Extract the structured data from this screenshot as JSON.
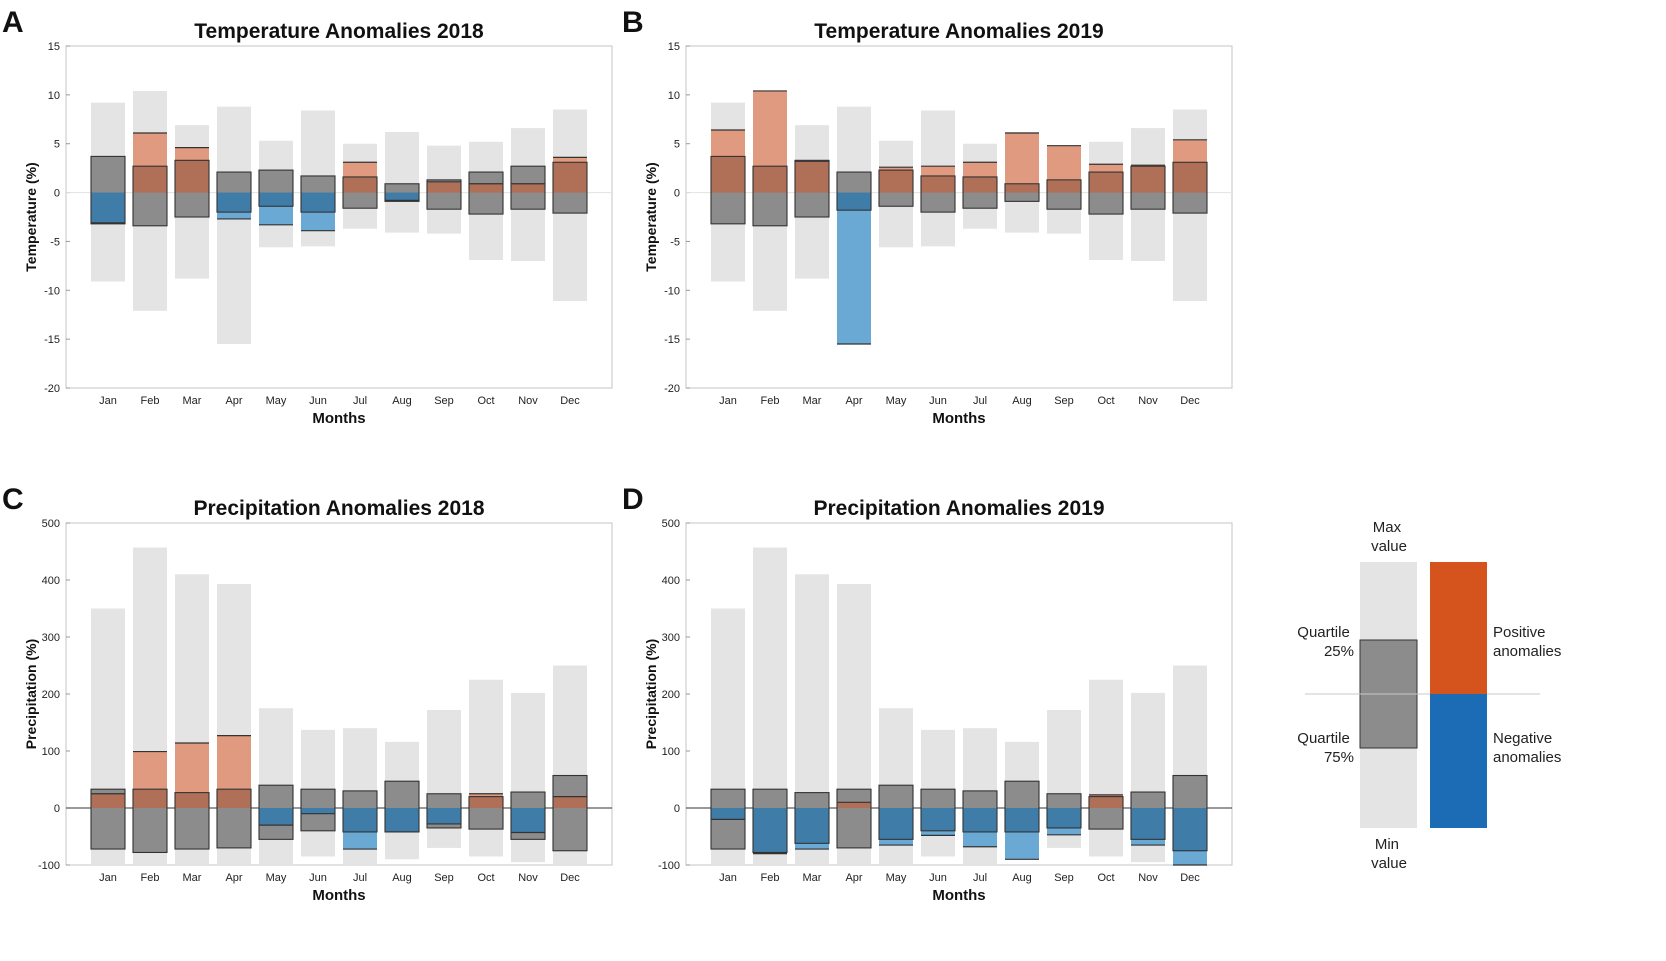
{
  "colors": {
    "range": "#e3e4e3",
    "quartile": "#8c8c8c",
    "positive_light": "#df9a80",
    "positive_dark": "#b07058",
    "negative_light": "#6aa9d4",
    "negative_dark": "#3f7ca8",
    "legend_positive": "#d5541e",
    "legend_negative": "#1c6cb5"
  },
  "legend": {
    "max_value": [
      "Max",
      "value"
    ],
    "min_value": [
      "Min",
      "value"
    ],
    "quartile_25": [
      "Quartile",
      "25%"
    ],
    "quartile_75": [
      "Quartile",
      "75%"
    ],
    "positive": [
      "Positive",
      "anomalies"
    ],
    "negative": [
      "Negative",
      "anomalies"
    ]
  },
  "chart_data": [
    {
      "panel": "A",
      "type": "bar",
      "title": "Temperature Anomalies 2018",
      "xlabel": "Months",
      "ylabel": "Temperature (%)",
      "ylim": [
        -20,
        15
      ],
      "yticks": [
        15,
        10,
        5,
        0,
        -5,
        -10,
        -15,
        -20
      ],
      "zero_line": "light",
      "categories": [
        "Jan",
        "Feb",
        "Mar",
        "Apr",
        "May",
        "Jun",
        "Jul",
        "Aug",
        "Sep",
        "Oct",
        "Nov",
        "Dec"
      ],
      "max": [
        9.2,
        10.4,
        6.9,
        8.8,
        5.3,
        8.4,
        5.0,
        6.2,
        4.8,
        5.2,
        6.6,
        8.5
      ],
      "min": [
        -9.1,
        -12.1,
        -8.8,
        -15.5,
        -5.6,
        -5.5,
        -3.7,
        -4.1,
        -4.2,
        -6.9,
        -7.0,
        -11.1
      ],
      "q25": [
        3.7,
        2.7,
        3.3,
        2.1,
        2.3,
        1.7,
        1.6,
        0.9,
        1.3,
        2.1,
        2.7,
        3.1
      ],
      "q75": [
        -3.2,
        -3.4,
        -2.5,
        -2.0,
        -1.4,
        -2.0,
        -1.6,
        -0.9,
        -1.7,
        -2.2,
        -1.7,
        -2.1
      ],
      "anomaly": [
        -3.1,
        6.1,
        4.6,
        -2.7,
        -3.3,
        -3.9,
        3.1,
        -0.8,
        1.1,
        0.9,
        0.9,
        3.6
      ]
    },
    {
      "panel": "B",
      "type": "bar",
      "title": "Temperature Anomalies 2019",
      "xlabel": "Months",
      "ylabel": "Temperature (%)",
      "ylim": [
        -20,
        15
      ],
      "yticks": [
        15,
        10,
        5,
        0,
        -5,
        -10,
        -15,
        -20
      ],
      "zero_line": "light",
      "categories": [
        "Jan",
        "Feb",
        "Mar",
        "Apr",
        "May",
        "Jun",
        "Jul",
        "Aug",
        "Sep",
        "Oct",
        "Nov",
        "Dec"
      ],
      "max": [
        9.2,
        10.4,
        6.9,
        8.8,
        5.3,
        8.4,
        5.0,
        6.2,
        4.8,
        5.2,
        6.6,
        8.5
      ],
      "min": [
        -9.1,
        -12.1,
        -8.8,
        -15.5,
        -5.6,
        -5.5,
        -3.7,
        -4.1,
        -4.2,
        -6.9,
        -7.0,
        -11.1
      ],
      "q25": [
        3.7,
        2.7,
        3.3,
        2.1,
        2.3,
        1.7,
        1.6,
        0.9,
        1.3,
        2.1,
        2.7,
        3.1
      ],
      "q75": [
        -3.2,
        -3.4,
        -2.5,
        -1.8,
        -1.4,
        -2.0,
        -1.6,
        -0.9,
        -1.7,
        -2.2,
        -1.7,
        -2.1
      ],
      "anomaly": [
        6.4,
        10.4,
        3.2,
        -15.5,
        2.6,
        2.7,
        3.1,
        6.1,
        4.8,
        2.9,
        2.8,
        5.4
      ]
    },
    {
      "panel": "C",
      "type": "bar",
      "title": "Precipitation Anomalies 2018",
      "xlabel": "Months",
      "ylabel": "Precipitation (%)",
      "ylim": [
        -100,
        500
      ],
      "yticks": [
        500,
        400,
        300,
        200,
        100,
        0,
        -100
      ],
      "zero_line": "dark",
      "categories": [
        "Jan",
        "Feb",
        "Mar",
        "Apr",
        "May",
        "Jun",
        "Jul",
        "Aug",
        "Sep",
        "Oct",
        "Nov",
        "Dec"
      ],
      "max": [
        350,
        457,
        410,
        393,
        175,
        137,
        140,
        116,
        172,
        225,
        202,
        250
      ],
      "min": [
        -100,
        -100,
        -100,
        -100,
        -100,
        -85,
        -100,
        -90,
        -70,
        -85,
        -95,
        -100
      ],
      "q25": [
        33,
        33,
        27,
        33,
        40,
        33,
        30,
        47,
        25,
        20,
        28,
        57
      ],
      "q75": [
        -72,
        -78,
        -72,
        -70,
        -55,
        -40,
        -42,
        -42,
        -35,
        -37,
        -55,
        -75
      ],
      "anomaly": [
        25,
        99,
        114,
        127,
        -30,
        -10,
        -72,
        -42,
        -28,
        25,
        -43,
        20
      ]
    },
    {
      "panel": "D",
      "type": "bar",
      "title": "Precipitation Anomalies 2019",
      "xlabel": "Months",
      "ylabel": "Precipitation (%)",
      "ylim": [
        -100,
        500
      ],
      "yticks": [
        500,
        400,
        300,
        200,
        100,
        0,
        -100
      ],
      "zero_line": "dark",
      "categories": [
        "Jan",
        "Feb",
        "Mar",
        "Apr",
        "May",
        "Jun",
        "Jul",
        "Aug",
        "Sep",
        "Oct",
        "Nov",
        "Dec"
      ],
      "max": [
        350,
        457,
        410,
        393,
        175,
        137,
        140,
        116,
        172,
        225,
        202,
        250
      ],
      "min": [
        -100,
        -100,
        -100,
        -100,
        -100,
        -85,
        -100,
        -90,
        -70,
        -85,
        -95,
        -100
      ],
      "q25": [
        33,
        33,
        27,
        33,
        40,
        33,
        30,
        47,
        25,
        20,
        28,
        57
      ],
      "q75": [
        -72,
        -78,
        -62,
        -70,
        -55,
        -40,
        -42,
        -42,
        -35,
        -37,
        -55,
        -75
      ],
      "anomaly": [
        -20,
        -80,
        -72,
        10,
        -65,
        -48,
        -68,
        -90,
        -47,
        23,
        -65,
        -100
      ]
    }
  ]
}
